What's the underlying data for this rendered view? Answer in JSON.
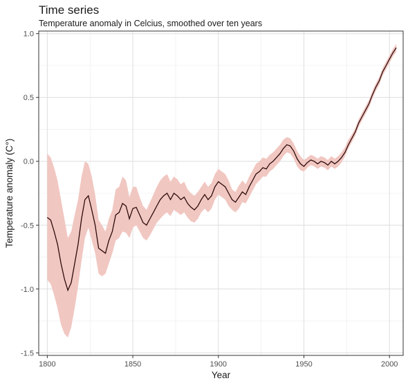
{
  "chart_data": {
    "type": "line",
    "title": "Time series",
    "subtitle": "Temperature anomaly in Celcius, smoothed over ten years",
    "xlabel": "Year",
    "ylabel": "Temperature anomaly (C°)",
    "xlim": [
      1795,
      2008
    ],
    "ylim": [
      -1.52,
      1.02
    ],
    "xticks": [
      1800,
      1850,
      1900,
      1950,
      2000
    ],
    "yticks": [
      -1.5,
      -1.0,
      -0.5,
      0.0,
      0.5,
      1.0
    ],
    "ytick_labels": [
      "-1.5",
      "-1.0",
      "-0.5",
      "0.0",
      "0.5",
      "1.0"
    ],
    "grid": true,
    "colors": {
      "line": "#2b0a0a",
      "band": "#f1c7c1"
    },
    "series": [
      {
        "x": [
          1800,
          1802,
          1804,
          1806,
          1808,
          1810,
          1812,
          1814,
          1816,
          1818,
          1820,
          1822,
          1824,
          1826,
          1828,
          1830,
          1832,
          1834,
          1836,
          1838,
          1840,
          1842,
          1844,
          1846,
          1848,
          1850,
          1852,
          1854,
          1856,
          1858,
          1860,
          1862,
          1864,
          1866,
          1868,
          1870,
          1872,
          1874,
          1876,
          1878,
          1880,
          1882,
          1884,
          1886,
          1888,
          1890,
          1892,
          1894,
          1896,
          1898,
          1900,
          1902,
          1904,
          1906,
          1908,
          1910,
          1912,
          1914,
          1916,
          1918,
          1920,
          1922,
          1924,
          1926,
          1928,
          1930,
          1932,
          1934,
          1936,
          1938,
          1940,
          1942,
          1944,
          1946,
          1948,
          1950,
          1952,
          1954,
          1956,
          1958,
          1960,
          1962,
          1964,
          1966,
          1968,
          1970,
          1972,
          1974,
          1976,
          1978,
          1980,
          1982,
          1984,
          1986,
          1988,
          1990,
          1992,
          1994,
          1996,
          1998,
          2000,
          2002,
          2004
        ],
        "y": [
          -0.44,
          -0.46,
          -0.55,
          -0.65,
          -0.8,
          -0.92,
          -1.01,
          -0.95,
          -0.8,
          -0.65,
          -0.45,
          -0.3,
          -0.27,
          -0.38,
          -0.5,
          -0.68,
          -0.7,
          -0.72,
          -0.62,
          -0.55,
          -0.42,
          -0.4,
          -0.33,
          -0.35,
          -0.45,
          -0.37,
          -0.36,
          -0.42,
          -0.48,
          -0.5,
          -0.45,
          -0.4,
          -0.35,
          -0.3,
          -0.27,
          -0.25,
          -0.3,
          -0.25,
          -0.27,
          -0.3,
          -0.28,
          -0.33,
          -0.36,
          -0.38,
          -0.35,
          -0.3,
          -0.26,
          -0.3,
          -0.27,
          -0.2,
          -0.16,
          -0.18,
          -0.2,
          -0.25,
          -0.3,
          -0.32,
          -0.28,
          -0.24,
          -0.26,
          -0.2,
          -0.15,
          -0.1,
          -0.08,
          -0.05,
          -0.06,
          -0.02,
          0.0,
          0.03,
          0.06,
          0.1,
          0.13,
          0.12,
          0.08,
          0.02,
          -0.02,
          -0.04,
          -0.01,
          0.01,
          0.0,
          -0.02,
          0.0,
          -0.01,
          -0.03,
          0.0,
          -0.02,
          0.0,
          0.03,
          0.07,
          0.13,
          0.18,
          0.23,
          0.3,
          0.35,
          0.4,
          0.45,
          0.52,
          0.58,
          0.63,
          0.7,
          0.75,
          0.8,
          0.85,
          0.89
        ],
        "lower": [
          -0.93,
          -0.96,
          -1.05,
          -1.15,
          -1.28,
          -1.35,
          -1.38,
          -1.3,
          -1.15,
          -0.98,
          -0.78,
          -0.6,
          -0.52,
          -0.62,
          -0.72,
          -0.88,
          -0.9,
          -0.88,
          -0.8,
          -0.72,
          -0.62,
          -0.6,
          -0.55,
          -0.56,
          -0.6,
          -0.52,
          -0.5,
          -0.55,
          -0.6,
          -0.62,
          -0.58,
          -0.53,
          -0.48,
          -0.45,
          -0.42,
          -0.4,
          -0.43,
          -0.38,
          -0.4,
          -0.42,
          -0.4,
          -0.44,
          -0.47,
          -0.48,
          -0.45,
          -0.4,
          -0.37,
          -0.4,
          -0.37,
          -0.3,
          -0.26,
          -0.28,
          -0.3,
          -0.35,
          -0.38,
          -0.4,
          -0.37,
          -0.32,
          -0.33,
          -0.28,
          -0.23,
          -0.18,
          -0.15,
          -0.12,
          -0.12,
          -0.08,
          -0.06,
          -0.03,
          0.0,
          0.04,
          0.07,
          0.06,
          0.02,
          -0.04,
          -0.07,
          -0.08,
          -0.05,
          -0.03,
          -0.04,
          -0.06,
          -0.04,
          -0.05,
          -0.07,
          -0.04,
          -0.06,
          -0.04,
          -0.01,
          0.04,
          0.1,
          0.15,
          0.2,
          0.27,
          0.32,
          0.37,
          0.42,
          0.49,
          0.55,
          0.6,
          0.67,
          0.72,
          0.77,
          0.82,
          0.86
        ],
        "upper": [
          0.06,
          0.03,
          -0.05,
          -0.15,
          -0.3,
          -0.45,
          -0.6,
          -0.55,
          -0.42,
          -0.3,
          -0.12,
          0.0,
          -0.02,
          -0.12,
          -0.26,
          -0.46,
          -0.5,
          -0.55,
          -0.45,
          -0.38,
          -0.22,
          -0.2,
          -0.12,
          -0.15,
          -0.28,
          -0.2,
          -0.2,
          -0.28,
          -0.35,
          -0.38,
          -0.32,
          -0.26,
          -0.2,
          -0.15,
          -0.12,
          -0.1,
          -0.16,
          -0.12,
          -0.14,
          -0.18,
          -0.16,
          -0.22,
          -0.25,
          -0.27,
          -0.24,
          -0.2,
          -0.16,
          -0.2,
          -0.17,
          -0.1,
          -0.06,
          -0.08,
          -0.1,
          -0.15,
          -0.22,
          -0.24,
          -0.19,
          -0.15,
          -0.18,
          -0.12,
          -0.07,
          -0.02,
          0.0,
          0.03,
          0.02,
          0.05,
          0.07,
          0.1,
          0.13,
          0.17,
          0.19,
          0.18,
          0.14,
          0.08,
          0.04,
          0.01,
          0.03,
          0.05,
          0.04,
          0.02,
          0.04,
          0.03,
          0.01,
          0.04,
          0.02,
          0.04,
          0.07,
          0.11,
          0.17,
          0.21,
          0.26,
          0.33,
          0.38,
          0.43,
          0.48,
          0.55,
          0.61,
          0.66,
          0.73,
          0.78,
          0.83,
          0.88,
          0.92
        ]
      }
    ]
  }
}
